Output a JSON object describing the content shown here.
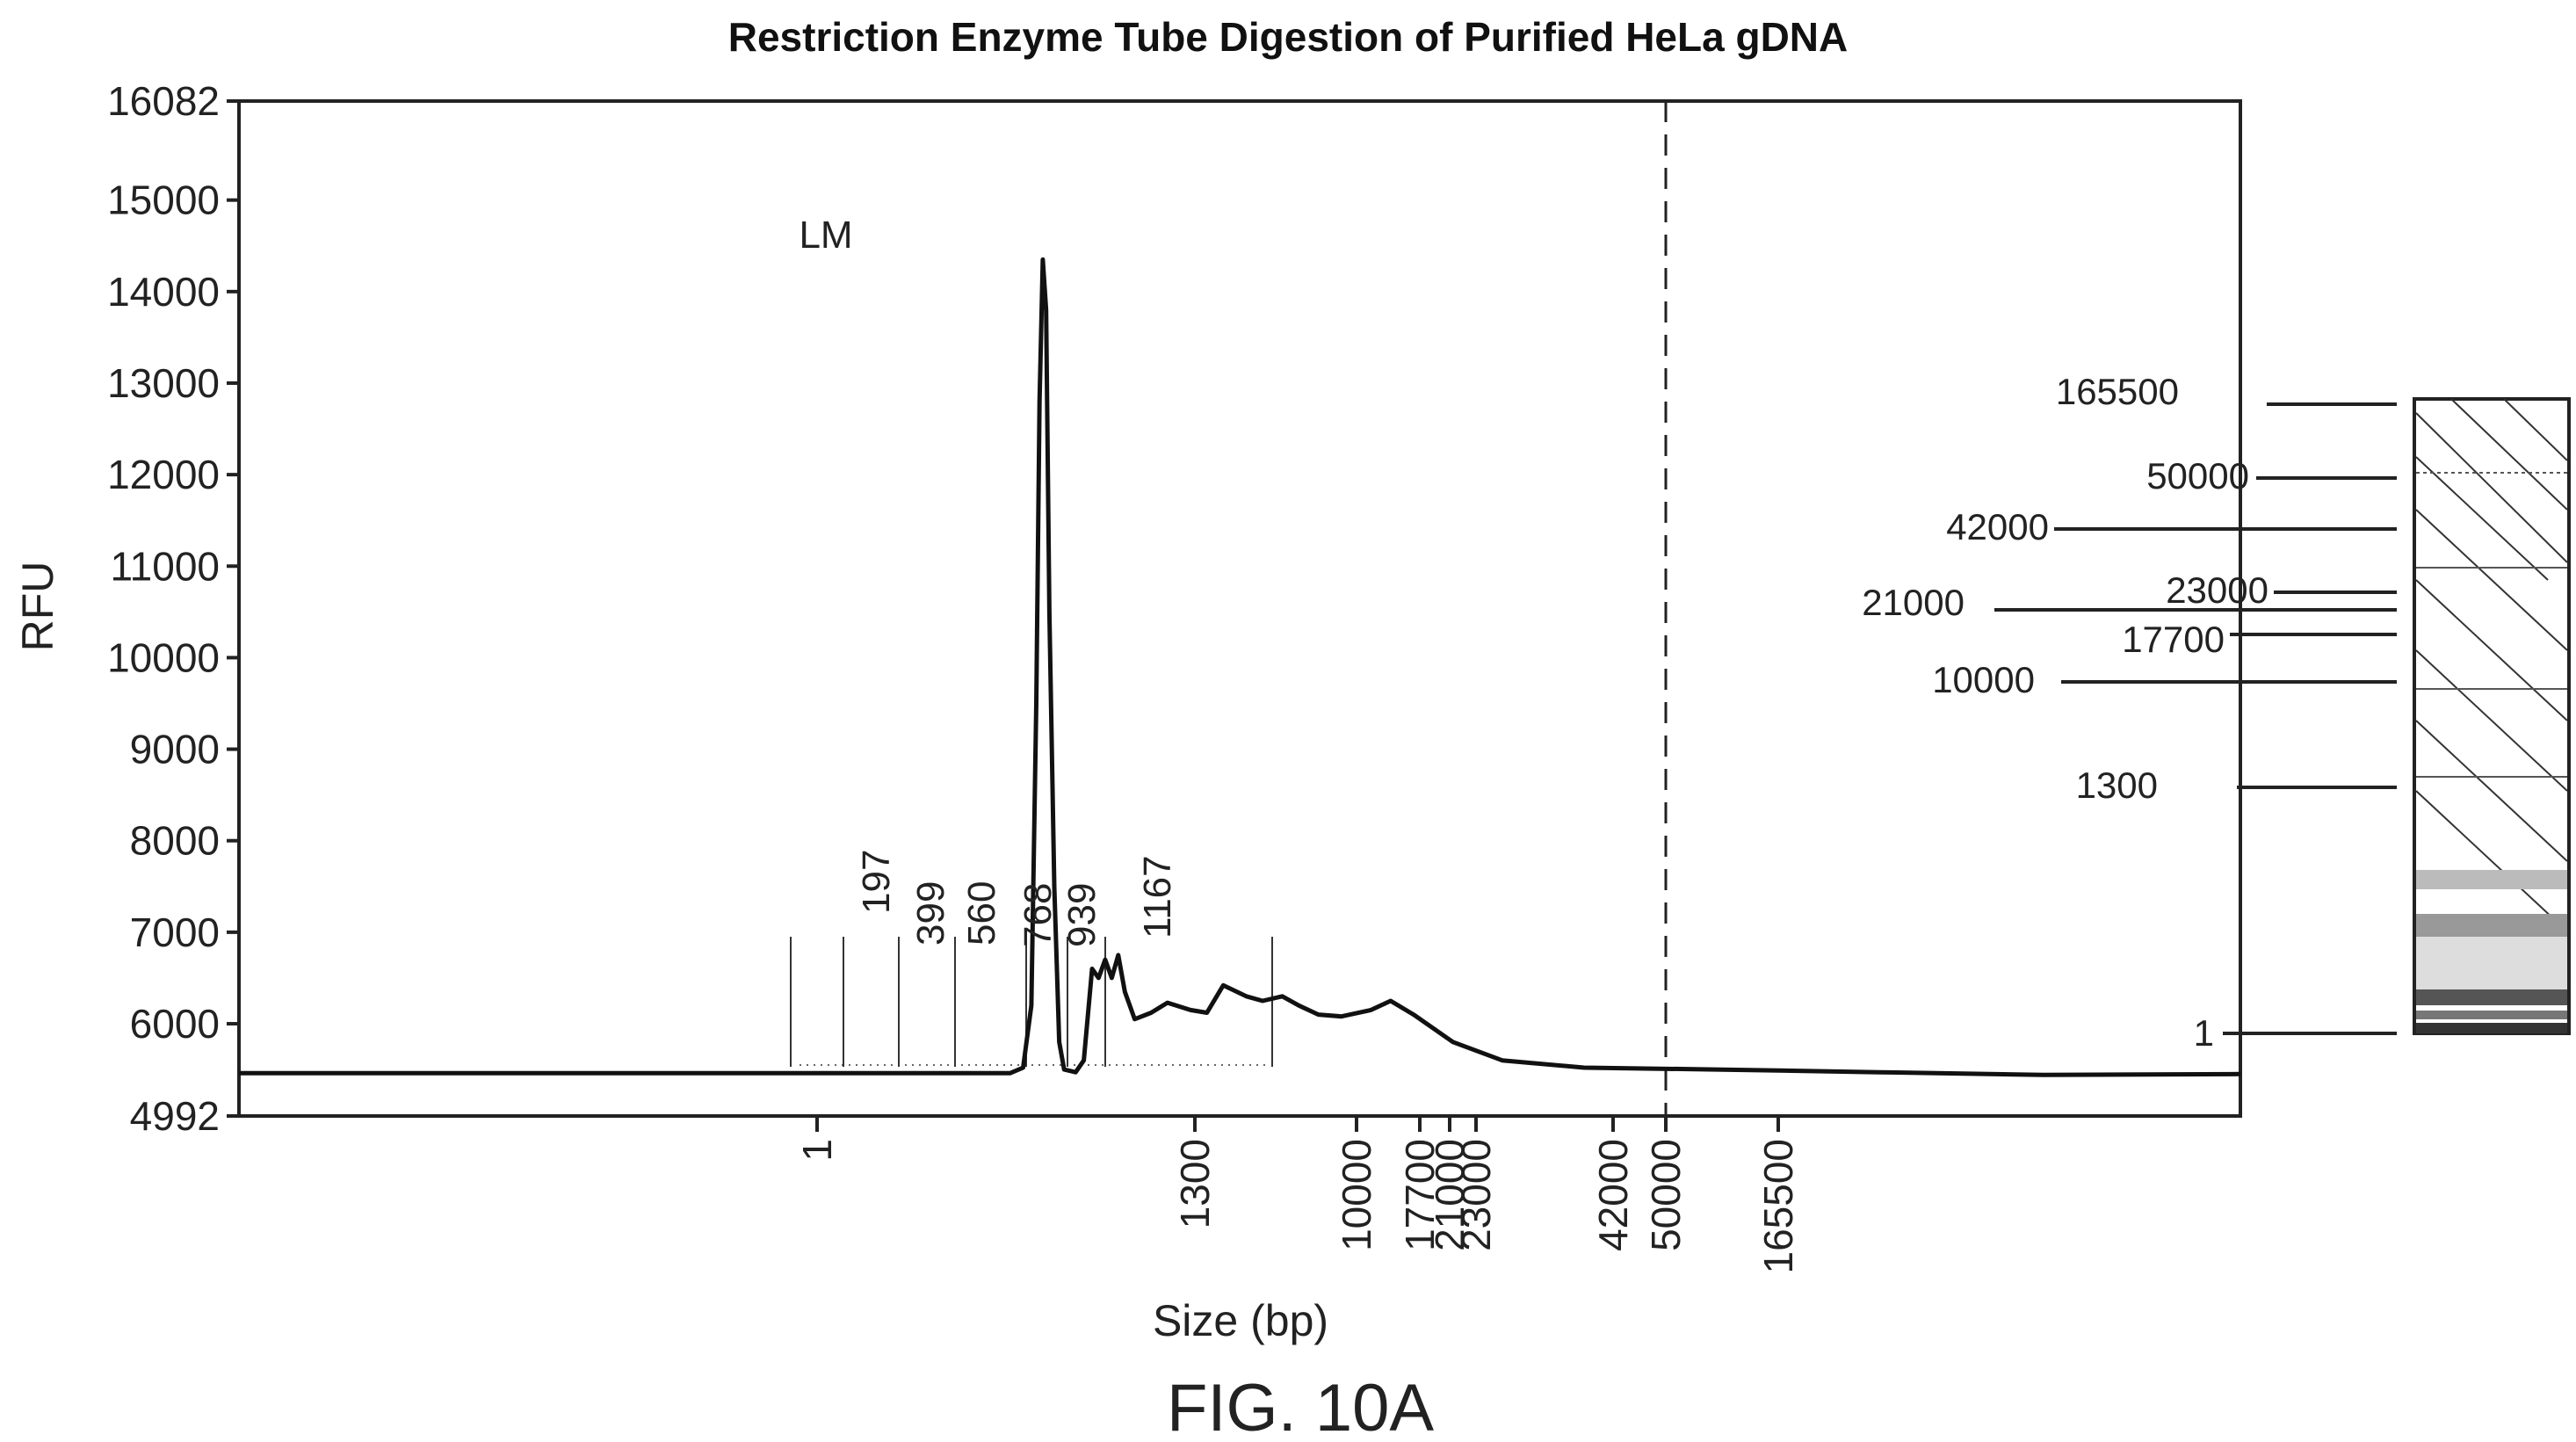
{
  "chart_data": {
    "type": "line",
    "title": "Restriction Enzyme Tube Digestion of Purified HeLa gDNA",
    "xlabel": "Size (bp)",
    "ylabel": "RFU",
    "ylim": [
      4992,
      16082
    ],
    "y_ticks": [
      "16082",
      "15000",
      "14000",
      "13000",
      "12000",
      "11000",
      "10000",
      "9000",
      "8000",
      "7000",
      "6000",
      "4992"
    ],
    "x_ticks": [
      "1",
      "1300",
      "10000",
      "17700",
      "21000",
      "23000",
      "42000",
      "50000",
      "165500"
    ],
    "marker_label": "LM",
    "marker_line": "50000",
    "peak_labels": [
      "197",
      "399",
      "560",
      "768",
      "939",
      "1167"
    ],
    "series": [
      {
        "points": [
          [
            0,
            5460
          ],
          [
            470,
            5460
          ],
          [
            478,
            5520
          ],
          [
            483,
            6200
          ],
          [
            486,
            9500
          ],
          [
            488,
            12800
          ],
          [
            490,
            14350
          ],
          [
            492,
            13800
          ],
          [
            494,
            10500
          ],
          [
            497,
            7500
          ],
          [
            500,
            5800
          ],
          [
            503,
            5500
          ],
          [
            510,
            5470
          ],
          [
            515,
            5600
          ],
          [
            520,
            6600
          ],
          [
            524,
            6500
          ],
          [
            528,
            6700
          ],
          [
            532,
            6500
          ],
          [
            536,
            6750
          ],
          [
            540,
            6350
          ],
          [
            546,
            6050
          ],
          [
            556,
            6120
          ],
          [
            566,
            6230
          ],
          [
            580,
            6150
          ],
          [
            590,
            6120
          ],
          [
            600,
            6420
          ],
          [
            614,
            6300
          ],
          [
            624,
            6250
          ],
          [
            636,
            6300
          ],
          [
            646,
            6200
          ],
          [
            658,
            6100
          ],
          [
            672,
            6080
          ],
          [
            690,
            6150
          ],
          [
            702,
            6250
          ],
          [
            716,
            6100
          ],
          [
            740,
            5800
          ],
          [
            770,
            5600
          ],
          [
            820,
            5520
          ],
          [
            900,
            5500
          ],
          [
            1000,
            5470
          ],
          [
            1100,
            5440
          ],
          [
            1220,
            5450
          ]
        ]
      }
    ],
    "legend": "none",
    "grid": false
  },
  "ladder": {
    "labels": [
      "165500",
      "50000",
      "42000",
      "23000",
      "21000",
      "17700",
      "10000",
      "1300",
      "1"
    ]
  },
  "figure_label": "FIG. 10A"
}
